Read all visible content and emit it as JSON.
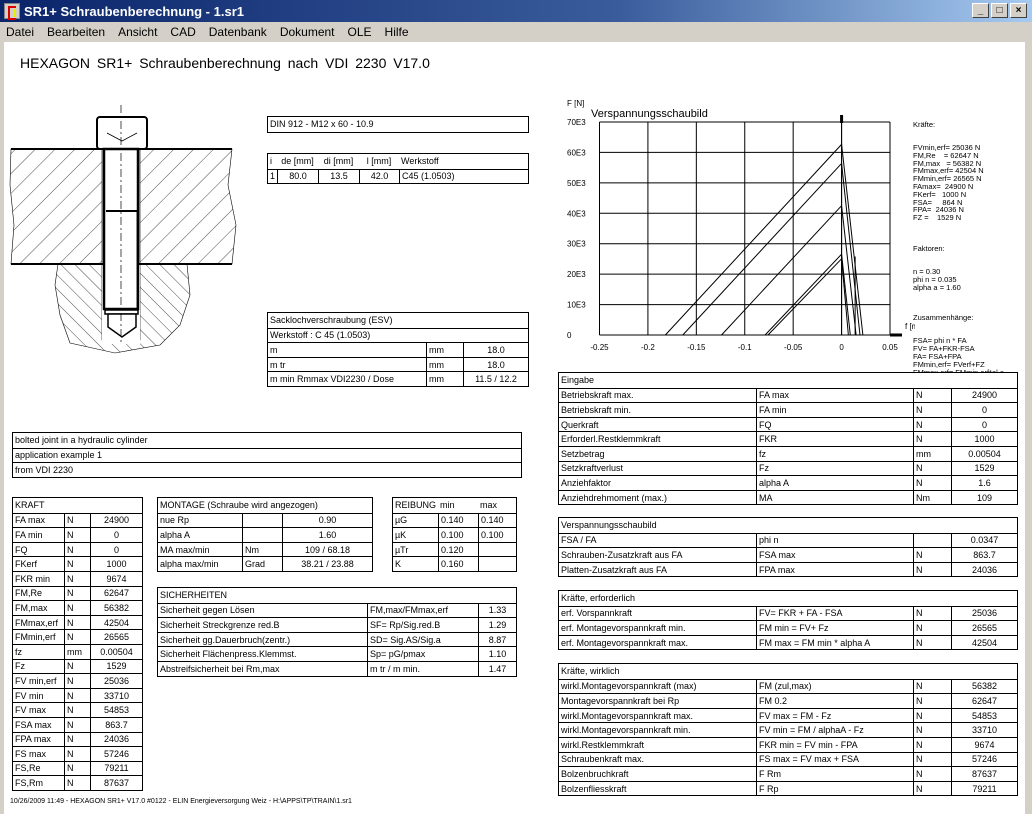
{
  "window": {
    "title": "SR1+  Schraubenberechnung  -  1.sr1",
    "buttons": [
      "_",
      "□",
      "×"
    ]
  },
  "menu": [
    "Datei",
    "Bearbeiten",
    "Ansicht",
    "CAD",
    "Datenbank",
    "Dokument",
    "OLE",
    "Hilfe"
  ],
  "heading": "HEXAGON   SR1+   Schraubenberechnung nach VDI 2230   V17.0",
  "bolt": {
    "title": "DIN 912 - M12 x 60 - 10.9"
  },
  "layers": {
    "headers": [
      "i",
      "de [mm]",
      "di [mm]",
      "l [mm]",
      "Werkstoff"
    ],
    "rows": [
      [
        "1",
        "80.0",
        "13.5",
        "42.0",
        "C45  (1.0503)"
      ]
    ]
  },
  "sackloch": {
    "title": "Sacklochverschraubung (ESV)",
    "subtitle": "Werkstoff : C 45  (1.0503)",
    "rows": [
      [
        "m",
        "mm",
        "18.0"
      ],
      [
        "m tr",
        "mm",
        "18.0"
      ],
      [
        "m min Rmmax VDI2230 / Dose",
        "mm",
        "11.5 / 12.2"
      ]
    ]
  },
  "description": {
    "rows": [
      [
        "bolted joint in a hydraulic cylinder"
      ],
      [
        "application example 1"
      ],
      [
        "from VDI 2230"
      ]
    ]
  },
  "kraft": {
    "title": "KRAFT",
    "rows": [
      [
        "FA max",
        "N",
        "24900"
      ],
      [
        "FA min",
        "N",
        "0"
      ],
      [
        "FQ",
        "N",
        "0"
      ],
      [
        "FKerf",
        "N",
        "1000"
      ],
      [
        "FKR min",
        "N",
        "9674"
      ],
      [
        "FM,Re",
        "N",
        "62647"
      ],
      [
        "FM,max",
        "N",
        "56382"
      ],
      [
        "FMmax,erf",
        "N",
        "42504"
      ],
      [
        "FMmin,erf",
        "N",
        "26565"
      ],
      [
        "fz",
        "mm",
        "0.00504"
      ],
      [
        "Fz",
        "N",
        "1529"
      ],
      [
        "FV min,erf",
        "N",
        "25036"
      ],
      [
        "FV min",
        "N",
        "33710"
      ],
      [
        "FV max",
        "N",
        "54853"
      ],
      [
        "FSA max",
        "N",
        "863.7"
      ],
      [
        "FPA max",
        "N",
        "24036"
      ],
      [
        "FS max",
        "N",
        "57246"
      ],
      [
        "FS,Re",
        "N",
        "79211"
      ],
      [
        "FS,Rm",
        "N",
        "87637"
      ]
    ]
  },
  "montage": {
    "title": "MONTAGE (Schraube wird angezogen)",
    "rows": [
      [
        "nue Rp",
        "",
        "0.90"
      ],
      [
        "alpha A",
        "",
        "1.60"
      ],
      [
        "MA max/min",
        "Nm",
        "109 /   68.18"
      ],
      [
        "alpha max/min",
        "Grad",
        "38.21 /   23.88"
      ]
    ]
  },
  "reibung": {
    "headers": [
      "REIBUNG",
      "min",
      "max"
    ],
    "rows": [
      [
        "µG",
        "0.140",
        "0.140"
      ],
      [
        "µK",
        "0.100",
        "0.100"
      ],
      [
        "µTr",
        "0.120",
        ""
      ],
      [
        "K",
        "0.160",
        ""
      ]
    ]
  },
  "sicherheiten": {
    "title": "SICHERHEITEN",
    "rows": [
      [
        "Sicherheit gegen Lösen",
        "FM,max/FMmax,erf",
        "1.33"
      ],
      [
        "Sicherheit Streckgrenze red.B",
        "SF= Rp/Sig.red.B",
        "1.29"
      ],
      [
        "Sicherheit gg.Dauerbruch(zentr.)",
        "SD= Sig.AS/Sig.a",
        "8.87"
      ],
      [
        "Sicherheit Flächenpress.Klemmst.",
        "Sp= pG/pmax",
        "1.10"
      ],
      [
        "Abstreifsicherheit bei Rm,max",
        "m tr / m min.",
        "1.47"
      ]
    ]
  },
  "eingabe": {
    "title": "Eingabe",
    "rows": [
      [
        "Betriebskraft max.",
        "FA max",
        "N",
        "24900"
      ],
      [
        "Betriebskraft min.",
        "FA min",
        "N",
        "0"
      ],
      [
        "Querkraft",
        "FQ",
        "N",
        "0"
      ],
      [
        "Erforderl.Restklemmkraft",
        "FKR",
        "N",
        "1000"
      ],
      [
        "Setzbetrag",
        "fz",
        "mm",
        "0.00504"
      ],
      [
        "Setzkraftverlust",
        "Fz",
        "N",
        "1529"
      ],
      [
        "Anziehfaktor",
        "alpha A",
        "N",
        "1.6"
      ],
      [
        "Anziehdrehmoment (max.)",
        "MA",
        "Nm",
        "109"
      ]
    ]
  },
  "verspannung": {
    "title": "Verspannungsschaubild",
    "rows": [
      [
        "FSA / FA",
        "phi n",
        "",
        "0.0347"
      ],
      [
        "Schrauben-Zusatzkraft aus FA",
        "FSA max",
        "N",
        "863.7"
      ],
      [
        "Platten-Zusatzkraft aus FA",
        "FPA max",
        "N",
        "24036"
      ]
    ]
  },
  "kraefte_erf": {
    "title": "Kräfte, erforderlich",
    "rows": [
      [
        "erf. Vorspannkraft",
        "FV= FKR + FA - FSA",
        "N",
        "25036"
      ],
      [
        "erf. Montagevorspannkraft min.",
        "FM min = FV+ Fz",
        "N",
        "26565"
      ],
      [
        "erf. Montagevorspannkraft max.",
        "FM max = FM min * alpha A",
        "N",
        "42504"
      ]
    ]
  },
  "kraefte_wirkl": {
    "title": "Kräfte, wirklich",
    "rows": [
      [
        "wirkl.Montagevorspannkraft (max)",
        "FM (zul,max)",
        "N",
        "56382"
      ],
      [
        "Montagevorspannkraft bei Rp",
        "FM 0.2",
        "N",
        "62647"
      ],
      [
        "wirkl.Montagevorspannkraft max.",
        "FV max = FM - Fz",
        "N",
        "54853"
      ],
      [
        "wirkl.Montagevorspannkraft min.",
        "FV min = FM / alphaA - Fz",
        "N",
        "33710"
      ],
      [
        "wirkl.Restklemmkraft",
        "FKR min = FV min - FPA",
        "N",
        "9674"
      ],
      [
        "Schraubenkraft max.",
        "FS max = FV max + FSA",
        "N",
        "57246"
      ],
      [
        "Bolzenbruchkraft",
        "F Rm",
        "N",
        "87637"
      ],
      [
        "Bolzenfliesskraft",
        "F Rp",
        "N",
        "79211"
      ]
    ]
  },
  "legend": {
    "kraefte_title": "Kräfte:",
    "kraefte": [
      "FVmin,erf= 25036 N",
      "FM,Re    = 62647 N",
      "FM,max   = 56382 N",
      "FMmax,erf= 42504 N",
      "FMmin,erf= 26565 N",
      "FAmax=  24900 N",
      "FKerf=   1000 N",
      "FSA=     864 N",
      "FPA=  24036 N",
      "FZ =    1529 N"
    ],
    "faktoren_title": "Faktoren:",
    "faktoren": [
      "n = 0.30",
      "phi n = 0.035",
      "alpha a = 1.60"
    ],
    "zus_title": "Zusammenhänge:",
    "zus": [
      "FSA= phi n * FA",
      "FV= FA+FKR-FSA",
      "FA= FSA+FPA",
      "FMmin,erf= FVerf+FZ",
      "FMmax,erf= FMmin,erf*al a"
    ]
  },
  "chart_data": {
    "type": "line",
    "title": "Verspannungsschaubild",
    "xlabel": "f [mm]",
    "ylabel": "F [N]",
    "xlim": [
      -0.25,
      0.05
    ],
    "ylim": [
      0,
      70000
    ],
    "xticks": [
      "-0.25",
      "-0.2",
      "-0.15",
      "-0.1",
      "-0.05",
      "0",
      "0.05"
    ],
    "xtick_values": [
      -0.25,
      -0.2,
      -0.15,
      -0.1,
      -0.05,
      0,
      0.05
    ],
    "yticks": [
      "0",
      "10E3",
      "20E3",
      "30E3",
      "40E3",
      "50E3",
      "60E3",
      "70E3"
    ],
    "ytick_values": [
      0,
      10000,
      20000,
      30000,
      40000,
      50000,
      60000,
      70000
    ],
    "grid": true,
    "lines": [
      {
        "x": [
          -0.182,
          0
        ],
        "y": [
          0,
          62647
        ]
      },
      {
        "x": [
          -0.164,
          0
        ],
        "y": [
          0,
          56382
        ]
      },
      {
        "x": [
          -0.124,
          0
        ],
        "y": [
          0,
          42504
        ]
      },
      {
        "x": [
          -0.079,
          0
        ],
        "y": [
          0,
          26565
        ]
      },
      {
        "x": [
          -0.076,
          0
        ],
        "y": [
          0,
          25036
        ]
      },
      {
        "x": [
          0,
          0.022
        ],
        "y": [
          62647,
          0
        ]
      },
      {
        "x": [
          0,
          0.019
        ],
        "y": [
          56382,
          0
        ]
      },
      {
        "x": [
          0,
          0.015
        ],
        "y": [
          42504,
          0
        ]
      },
      {
        "x": [
          0,
          0.009
        ],
        "y": [
          26565,
          0
        ]
      },
      {
        "x": [
          0,
          0.007
        ],
        "y": [
          25036,
          0
        ]
      },
      {
        "x": [
          0.014,
          0.014
        ],
        "y": [
          0,
          25800
        ]
      },
      {
        "x": [
          0,
          0
        ],
        "y": [
          0,
          72000
        ]
      }
    ]
  },
  "footer": "10/26/2009 11:49 - HEXAGON SR1+ V17.0 #0122 - ELIN Energieversorgung Weiz - H:\\APPS\\TP\\TRAIN\\1.sr1"
}
